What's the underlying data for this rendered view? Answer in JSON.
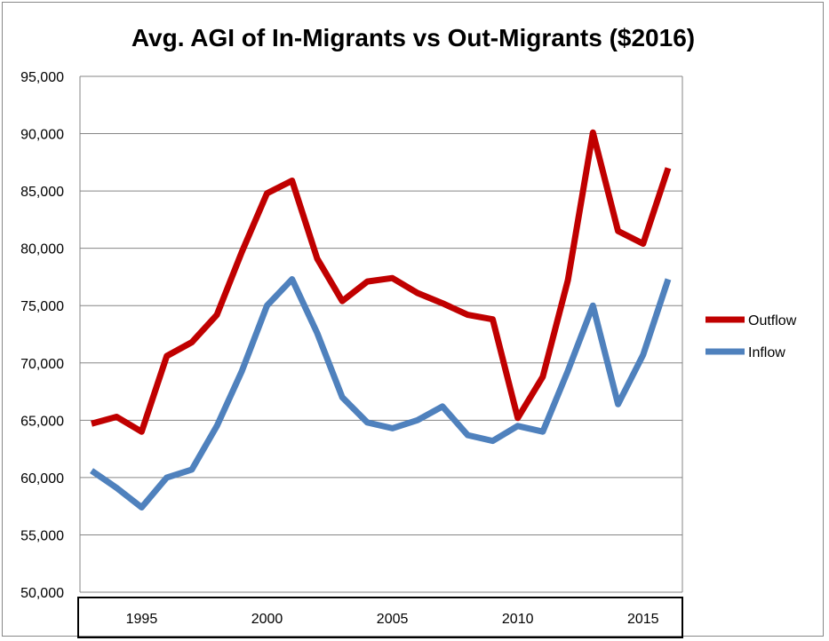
{
  "chart_data": {
    "type": "line",
    "title": "Avg. AGI of In-Migrants vs Out-Migrants ($2016)",
    "xlabel": "",
    "ylabel": "",
    "ylim": [
      50000,
      95000
    ],
    "yticks": [
      "95,000",
      "90,000",
      "85,000",
      "80,000",
      "75,000",
      "70,000",
      "65,000",
      "60,000",
      "55,000",
      "50,000"
    ],
    "xticks": [
      "1995",
      "2000",
      "2005",
      "2010",
      "2015"
    ],
    "x": [
      1993,
      1994,
      1995,
      1996,
      1997,
      1998,
      1999,
      2000,
      2001,
      2002,
      2003,
      2004,
      2005,
      2006,
      2007,
      2008,
      2009,
      2010,
      2011,
      2012,
      2013,
      2014,
      2015,
      2016
    ],
    "grid": true,
    "legend_position": "right",
    "series": [
      {
        "name": "Outflow",
        "color": "#c00000",
        "values": [
          64700,
          65300,
          64000,
          70600,
          71800,
          74200,
          79700,
          84800,
          85900,
          79100,
          75400,
          77100,
          77400,
          76100,
          75200,
          74200,
          73800,
          65200,
          68800,
          77200,
          90100,
          81500,
          80400,
          87000
        ]
      },
      {
        "name": "Inflow",
        "color": "#4f81bd",
        "values": [
          60600,
          59100,
          57400,
          60000,
          60700,
          64500,
          69300,
          75000,
          77300,
          72600,
          67000,
          64800,
          64300,
          65000,
          66200,
          63700,
          63200,
          64500,
          64000,
          69300,
          75000,
          66400,
          70700,
          77300
        ]
      }
    ]
  }
}
